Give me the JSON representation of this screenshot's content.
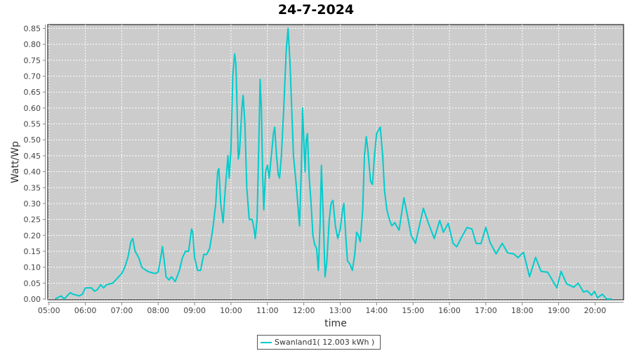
{
  "chart_data": {
    "type": "line",
    "title": "24-7-2024",
    "xlabel": "time",
    "ylabel": "Watt/Wp",
    "xlim": [
      "04:58",
      "20:47"
    ],
    "ylim": [
      0,
      0.86
    ],
    "x_ticks": [
      "05:00",
      "06:00",
      "07:00",
      "08:00",
      "09:00",
      "10:00",
      "11:00",
      "12:00",
      "13:00",
      "14:00",
      "15:00",
      "16:00",
      "17:00",
      "18:00",
      "19:00",
      "20:00"
    ],
    "y_ticks": [
      "0.00",
      "0.05",
      "0.10",
      "0.15",
      "0.20",
      "0.25",
      "0.30",
      "0.35",
      "0.40",
      "0.45",
      "0.50",
      "0.55",
      "0.60",
      "0.65",
      "0.70",
      "0.75",
      "0.80",
      "0.85"
    ],
    "grid": true,
    "background": "#cccccc",
    "legend_position": "bottom",
    "series": [
      {
        "name": "Swanland1( 12.003 kWh )",
        "color": "#00cccc",
        "points": [
          [
            "05:10",
            0.0
          ],
          [
            "05:20",
            0.01
          ],
          [
            "05:25",
            0.0
          ],
          [
            "05:35",
            0.02
          ],
          [
            "05:40",
            0.015
          ],
          [
            "05:50",
            0.01
          ],
          [
            "05:55",
            0.015
          ],
          [
            "06:00",
            0.035
          ],
          [
            "06:10",
            0.035
          ],
          [
            "06:15",
            0.025
          ],
          [
            "06:20",
            0.03
          ],
          [
            "06:25",
            0.045
          ],
          [
            "06:30",
            0.035
          ],
          [
            "06:35",
            0.045
          ],
          [
            "06:45",
            0.05
          ],
          [
            "06:50",
            0.06
          ],
          [
            "07:00",
            0.08
          ],
          [
            "07:05",
            0.1
          ],
          [
            "07:10",
            0.13
          ],
          [
            "07:15",
            0.18
          ],
          [
            "07:18",
            0.19
          ],
          [
            "07:22",
            0.15
          ],
          [
            "07:28",
            0.13
          ],
          [
            "07:33",
            0.1
          ],
          [
            "07:40",
            0.09
          ],
          [
            "07:45",
            0.085
          ],
          [
            "07:55",
            0.08
          ],
          [
            "08:00",
            0.085
          ],
          [
            "08:05",
            0.14
          ],
          [
            "08:07",
            0.165
          ],
          [
            "08:10",
            0.12
          ],
          [
            "08:13",
            0.07
          ],
          [
            "08:18",
            0.06
          ],
          [
            "08:22",
            0.07
          ],
          [
            "08:28",
            0.055
          ],
          [
            "08:35",
            0.09
          ],
          [
            "08:40",
            0.13
          ],
          [
            "08:45",
            0.15
          ],
          [
            "08:50",
            0.15
          ],
          [
            "08:55",
            0.22
          ],
          [
            "08:57",
            0.21
          ],
          [
            "09:00",
            0.13
          ],
          [
            "09:05",
            0.09
          ],
          [
            "09:10",
            0.09
          ],
          [
            "09:15",
            0.14
          ],
          [
            "09:20",
            0.14
          ],
          [
            "09:25",
            0.16
          ],
          [
            "09:30",
            0.22
          ],
          [
            "09:35",
            0.3
          ],
          [
            "09:38",
            0.4
          ],
          [
            "09:40",
            0.41
          ],
          [
            "09:43",
            0.3
          ],
          [
            "09:47",
            0.24
          ],
          [
            "09:50",
            0.33
          ],
          [
            "09:55",
            0.45
          ],
          [
            "09:57",
            0.38
          ],
          [
            "10:00",
            0.47
          ],
          [
            "10:03",
            0.7
          ],
          [
            "10:06",
            0.77
          ],
          [
            "10:08",
            0.74
          ],
          [
            "10:10",
            0.6
          ],
          [
            "10:12",
            0.44
          ],
          [
            "10:14",
            0.46
          ],
          [
            "10:18",
            0.6
          ],
          [
            "10:20",
            0.64
          ],
          [
            "10:23",
            0.55
          ],
          [
            "10:26",
            0.35
          ],
          [
            "10:30",
            0.25
          ],
          [
            "10:35",
            0.25
          ],
          [
            "10:38",
            0.22
          ],
          [
            "10:40",
            0.19
          ],
          [
            "10:43",
            0.25
          ],
          [
            "10:46",
            0.5
          ],
          [
            "10:48",
            0.69
          ],
          [
            "10:50",
            0.6
          ],
          [
            "10:52",
            0.4
          ],
          [
            "10:54",
            0.28
          ],
          [
            "10:57",
            0.4
          ],
          [
            "11:00",
            0.42
          ],
          [
            "11:03",
            0.38
          ],
          [
            "11:06",
            0.44
          ],
          [
            "11:10",
            0.52
          ],
          [
            "11:12",
            0.54
          ],
          [
            "11:15",
            0.45
          ],
          [
            "11:18",
            0.39
          ],
          [
            "11:20",
            0.38
          ],
          [
            "11:23",
            0.45
          ],
          [
            "11:27",
            0.6
          ],
          [
            "11:31",
            0.78
          ],
          [
            "11:34",
            0.85
          ],
          [
            "11:37",
            0.75
          ],
          [
            "11:40",
            0.6
          ],
          [
            "11:43",
            0.45
          ],
          [
            "11:47",
            0.37
          ],
          [
            "11:50",
            0.3
          ],
          [
            "11:53",
            0.23
          ],
          [
            "11:56",
            0.42
          ],
          [
            "11:58",
            0.6
          ],
          [
            "12:00",
            0.5
          ],
          [
            "12:02",
            0.4
          ],
          [
            "12:04",
            0.5
          ],
          [
            "12:06",
            0.52
          ],
          [
            "12:09",
            0.38
          ],
          [
            "12:12",
            0.3
          ],
          [
            "12:15",
            0.2
          ],
          [
            "12:18",
            0.17
          ],
          [
            "12:21",
            0.16
          ],
          [
            "12:24",
            0.09
          ],
          [
            "12:27",
            0.25
          ],
          [
            "12:29",
            0.42
          ],
          [
            "12:32",
            0.26
          ],
          [
            "12:35",
            0.07
          ],
          [
            "12:38",
            0.12
          ],
          [
            "12:42",
            0.25
          ],
          [
            "12:45",
            0.3
          ],
          [
            "12:48",
            0.31
          ],
          [
            "12:52",
            0.23
          ],
          [
            "12:56",
            0.19
          ],
          [
            "13:00",
            0.22
          ],
          [
            "13:04",
            0.28
          ],
          [
            "13:06",
            0.3
          ],
          [
            "13:09",
            0.2
          ],
          [
            "13:12",
            0.12
          ],
          [
            "13:16",
            0.11
          ],
          [
            "13:20",
            0.09
          ],
          [
            "13:24",
            0.14
          ],
          [
            "13:27",
            0.21
          ],
          [
            "13:30",
            0.2
          ],
          [
            "13:33",
            0.18
          ],
          [
            "13:37",
            0.28
          ],
          [
            "13:40",
            0.45
          ],
          [
            "13:43",
            0.51
          ],
          [
            "13:46",
            0.46
          ],
          [
            "13:50",
            0.37
          ],
          [
            "13:53",
            0.36
          ],
          [
            "13:57",
            0.46
          ],
          [
            "14:00",
            0.52
          ],
          [
            "14:03",
            0.53
          ],
          [
            "14:06",
            0.54
          ],
          [
            "14:10",
            0.45
          ],
          [
            "14:13",
            0.34
          ],
          [
            "14:17",
            0.28
          ],
          [
            "14:21",
            0.25
          ],
          [
            "14:25",
            0.23
          ],
          [
            "14:30",
            0.24
          ],
          [
            "14:37",
            0.216
          ],
          [
            "14:45",
            0.318
          ],
          [
            "14:50",
            0.27
          ],
          [
            "14:57",
            0.2
          ],
          [
            "15:04",
            0.175
          ],
          [
            "15:17",
            0.285
          ],
          [
            "15:25",
            0.24
          ],
          [
            "15:35",
            0.19
          ],
          [
            "15:44",
            0.247
          ],
          [
            "15:50",
            0.21
          ],
          [
            "15:58",
            0.238
          ],
          [
            "16:06",
            0.175
          ],
          [
            "16:12",
            0.164
          ],
          [
            "16:20",
            0.194
          ],
          [
            "16:29",
            0.225
          ],
          [
            "16:37",
            0.22
          ],
          [
            "16:44",
            0.175
          ],
          [
            "16:52",
            0.174
          ],
          [
            "17:00",
            0.225
          ],
          [
            "17:07",
            0.178
          ],
          [
            "17:17",
            0.142
          ],
          [
            "17:27",
            0.175
          ],
          [
            "17:36",
            0.145
          ],
          [
            "17:46",
            0.142
          ],
          [
            "17:53",
            0.13
          ],
          [
            "18:02",
            0.147
          ],
          [
            "18:12",
            0.07
          ],
          [
            "18:22",
            0.131
          ],
          [
            "18:31",
            0.087
          ],
          [
            "18:42",
            0.084
          ],
          [
            "18:57",
            0.035
          ],
          [
            "19:04",
            0.087
          ],
          [
            "19:13",
            0.048
          ],
          [
            "19:25",
            0.037
          ],
          [
            "19:32",
            0.05
          ],
          [
            "19:41",
            0.022
          ],
          [
            "19:47",
            0.026
          ],
          [
            "19:54",
            0.012
          ],
          [
            "19:59",
            0.024
          ],
          [
            "20:04",
            0.004
          ],
          [
            "20:12",
            0.015
          ],
          [
            "20:19",
            0.0
          ],
          [
            "20:28",
            0.0
          ]
        ]
      }
    ]
  }
}
